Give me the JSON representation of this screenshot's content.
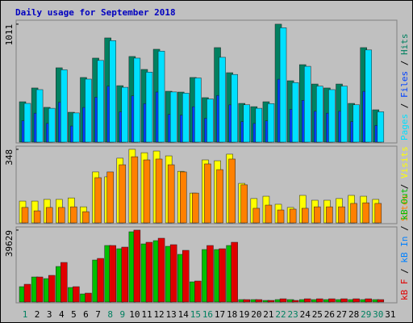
{
  "chart_data": [
    {
      "type": "bar",
      "title": "Daily usage for September 2018",
      "legend_separator": " / ",
      "ylim": [
        0,
        1045
      ],
      "yticks": [
        1011
      ],
      "series": [
        {
          "name": "Pages",
          "color": "#00e0ff",
          "values": [
            332,
            450,
            290,
            620,
            250,
            540,
            700,
            870,
            470,
            720,
            600,
            780,
            430,
            420,
            550,
            370,
            727,
            580,
            320,
            290,
            330,
            980,
            510,
            650,
            480,
            450,
            480,
            320,
            790,
            260,
            0
          ]
        },
        {
          "name": "Files",
          "color": "#0040ff",
          "values": [
            183,
            248,
            160,
            341,
            138,
            297,
            385,
            479,
            259,
            396,
            330,
            429,
            237,
            231,
            303,
            204,
            400,
            319,
            176,
            160,
            182,
            539,
            281,
            358,
            264,
            248,
            264,
            176,
            435,
            143,
            0
          ]
        },
        {
          "name": "Hits",
          "color": "#008060",
          "values": [
            346,
            464,
            298,
            637,
            256,
            554,
            720,
            893,
            484,
            734,
            623,
            796,
            436,
            429,
            554,
            381,
            810,
            595,
            332,
            304,
            346,
            1011,
            526,
            664,
            498,
            464,
            498,
            332,
            810,
            277,
            0
          ]
        }
      ]
    },
    {
      "type": "bar",
      "ylim": [
        0,
        363
      ],
      "yticks": [
        348
      ],
      "series": [
        {
          "name": "Sites",
          "color": "#ff8000",
          "values": [
            73,
            57,
            73,
            73,
            76,
            53,
            214,
            241,
            275,
            313,
            298,
            302,
            275,
            241,
            141,
            279,
            252,
            302,
            180,
            69,
            84,
            61,
            65,
            69,
            76,
            76,
            76,
            92,
            95,
            92,
            0
          ]
        },
        {
          "name": "Visits",
          "color": "#ffff00",
          "values": [
            103,
            103,
            111,
            111,
            118,
            76,
            241,
            218,
            306,
            348,
            332,
            340,
            317,
            244,
            141,
            298,
            294,
            325,
            187,
            115,
            126,
            88,
            73,
            130,
            107,
            107,
            115,
            130,
            126,
            111,
            0
          ]
        }
      ]
    },
    {
      "type": "bar",
      "ylim": [
        0,
        41385
      ],
      "yticks": [
        39629
      ],
      "categories": [
        "1",
        "2",
        "3",
        "4",
        "5",
        "6",
        "7",
        "8",
        "9",
        "10",
        "11",
        "12",
        "13",
        "14",
        "15",
        "16",
        "17",
        "18",
        "19",
        "20",
        "21",
        "22",
        "23",
        "24",
        "25",
        "26",
        "27",
        "28",
        "29",
        "30",
        "31"
      ],
      "category_colors": [
        "#008060",
        "#000000",
        "#000000",
        "#000000",
        "#000000",
        "#000000",
        "#000000",
        "#008060",
        "#008060",
        "#000000",
        "#000000",
        "#000000",
        "#000000",
        "#000000",
        "#008060",
        "#008060",
        "#000000",
        "#000000",
        "#000000",
        "#000000",
        "#000000",
        "#008060",
        "#008060",
        "#000000",
        "#000000",
        "#000000",
        "#000000",
        "#000000",
        "#008060",
        "#008060",
        "#000000"
      ],
      "series": [
        {
          "name": "kB F",
          "color": "#e00000",
          "values": [
            9790,
            13795,
            14685,
            21805,
            8455,
            4895,
            24030,
            31150,
            30260,
            39629,
            32930,
            35155,
            31595,
            28480,
            11570,
            31150,
            29370,
            32930,
            1335,
            1335,
            890,
            1780,
            890,
            1780,
            1780,
            1780,
            1780,
            1780,
            1780,
            1335,
            0
          ]
        },
        {
          "name": "kB In",
          "color": "#0080ff",
          "values": [
            0,
            0,
            0,
            0,
            0,
            0,
            0,
            0,
            0,
            0,
            0,
            0,
            0,
            0,
            0,
            0,
            0,
            0,
            0,
            0,
            0,
            0,
            0,
            0,
            0,
            0,
            0,
            0,
            0,
            0,
            0
          ]
        },
        {
          "name": "kB Out",
          "color": "#00c000",
          "values": [
            8455,
            13795,
            12905,
            19580,
            8010,
            4450,
            23140,
            31150,
            29370,
            38715,
            32040,
            33820,
            30705,
            26255,
            11125,
            28925,
            28925,
            31150,
            1335,
            1335,
            890,
            1335,
            1335,
            1335,
            1335,
            1335,
            1335,
            1335,
            1335,
            1335,
            0
          ]
        }
      ]
    }
  ]
}
